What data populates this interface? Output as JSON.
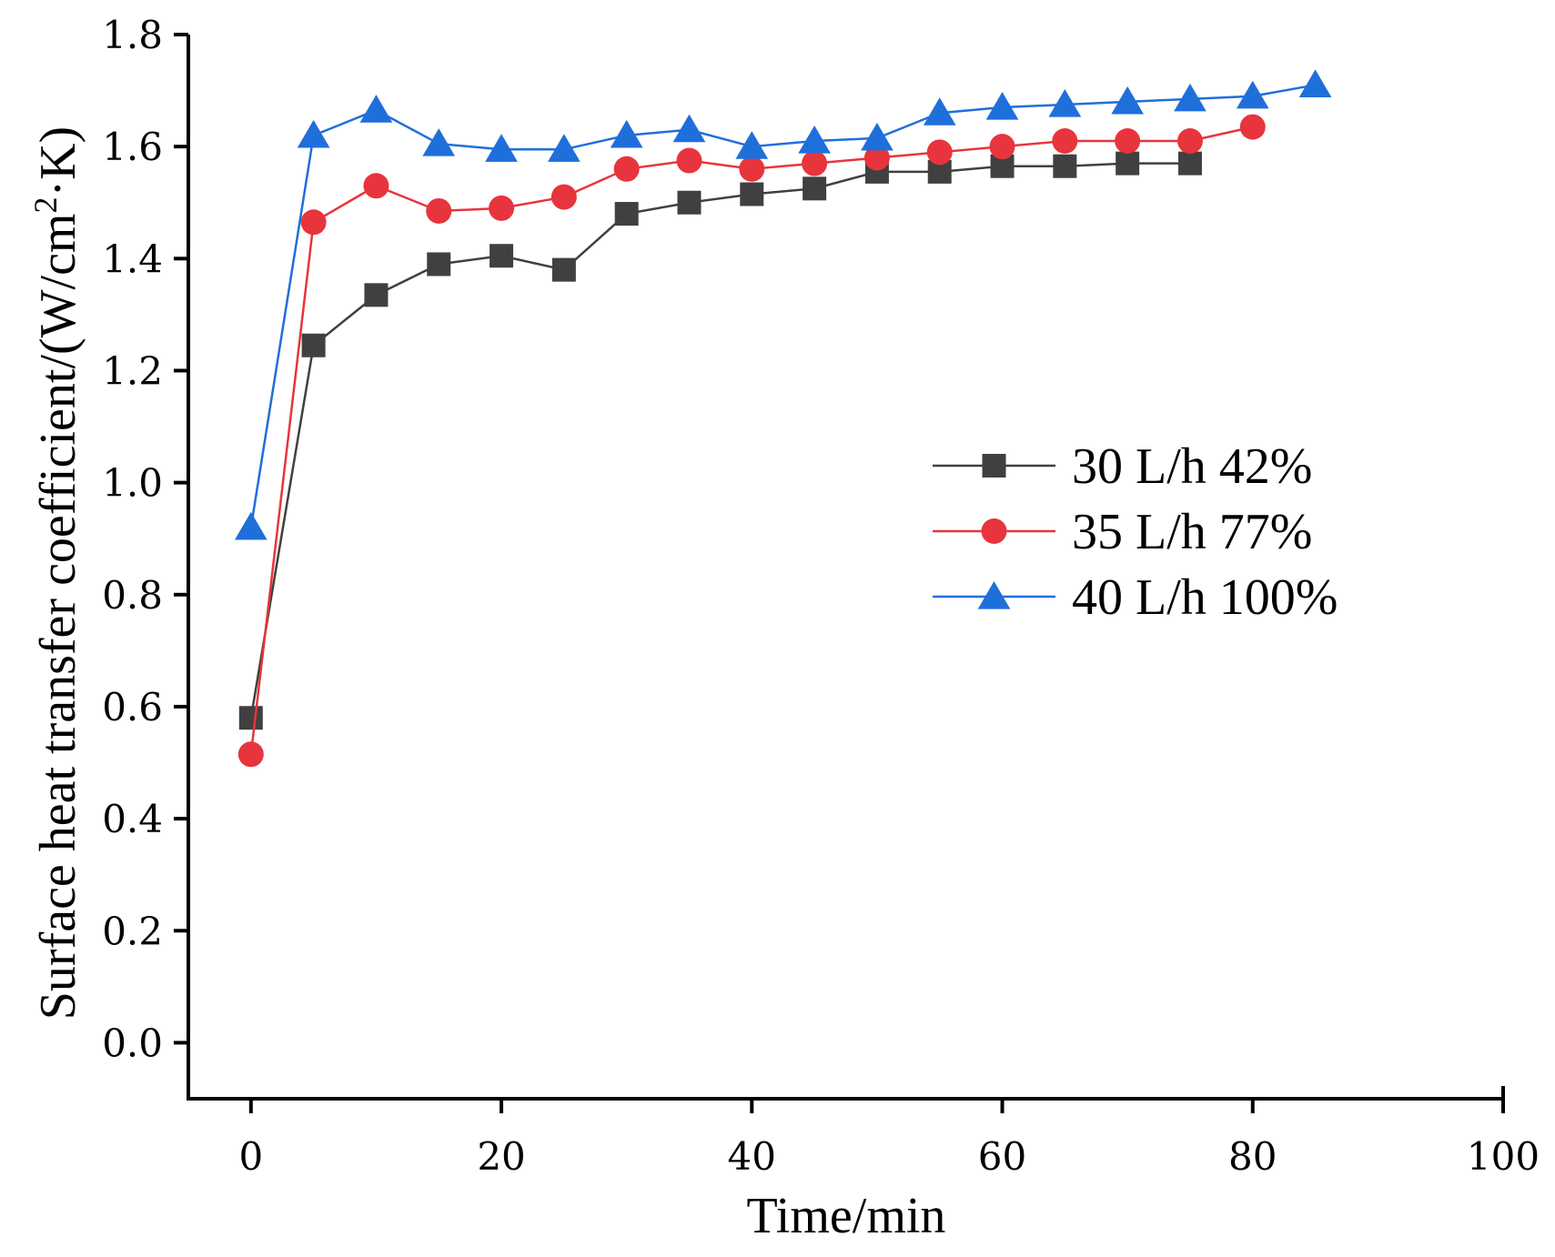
{
  "chart_data": {
    "type": "line",
    "title": "",
    "xlabel": "Time/min",
    "ylabel_prefix": "Surface heat transfer coefficient/(W/cm",
    "ylabel_sup": "2",
    "ylabel_suffix": "·K)",
    "xlim": [
      -5,
      100
    ],
    "ylim": [
      -0.1,
      1.8
    ],
    "xticks": [
      0,
      20,
      40,
      60,
      80,
      100
    ],
    "yticks": [
      0.0,
      0.2,
      0.4,
      0.6,
      0.8,
      1.0,
      1.2,
      1.4,
      1.6,
      1.8
    ],
    "xtick_labels": [
      "0",
      "20",
      "40",
      "60",
      "80",
      "100"
    ],
    "ytick_labels": [
      "0.0",
      "0.2",
      "0.4",
      "0.6",
      "0.8",
      "1.0",
      "1.2",
      "1.4",
      "1.6",
      "1.8"
    ],
    "legend_position": "center-right",
    "series": [
      {
        "name": "30 L/h 42%",
        "color": "#404040",
        "marker": "square",
        "x": [
          0,
          5,
          10,
          15,
          20,
          25,
          30,
          35,
          40,
          45,
          50,
          55,
          60,
          65,
          70,
          75
        ],
        "y": [
          0.58,
          1.245,
          1.335,
          1.39,
          1.405,
          1.38,
          1.48,
          1.5,
          1.515,
          1.525,
          1.555,
          1.555,
          1.565,
          1.565,
          1.57,
          1.57
        ]
      },
      {
        "name": "35 L/h 77%",
        "color": "#e8343c",
        "marker": "circle",
        "x": [
          0,
          5,
          10,
          15,
          20,
          25,
          30,
          35,
          40,
          45,
          50,
          55,
          60,
          65,
          70,
          75,
          80
        ],
        "y": [
          0.515,
          1.465,
          1.53,
          1.485,
          1.49,
          1.51,
          1.56,
          1.575,
          1.56,
          1.57,
          1.58,
          1.59,
          1.6,
          1.61,
          1.61,
          1.61,
          1.635
        ]
      },
      {
        "name": "40 L/h 100%",
        "color": "#1f6fdb",
        "marker": "triangle",
        "x": [
          0,
          5,
          10,
          15,
          20,
          25,
          30,
          35,
          40,
          45,
          50,
          55,
          60,
          65,
          70,
          75,
          80,
          85
        ],
        "y": [
          0.92,
          1.62,
          1.665,
          1.605,
          1.595,
          1.595,
          1.62,
          1.63,
          1.6,
          1.61,
          1.615,
          1.66,
          1.67,
          1.675,
          1.68,
          1.685,
          1.69,
          1.71
        ]
      }
    ]
  }
}
